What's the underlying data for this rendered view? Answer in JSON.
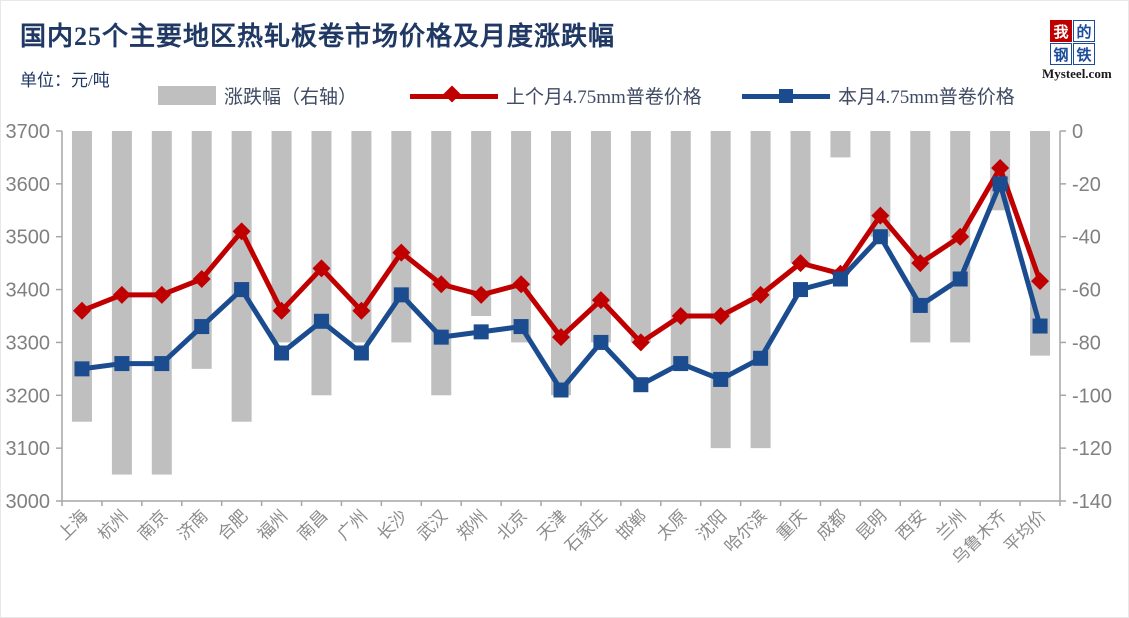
{
  "header": {
    "title": "国内25个主要地区热轧板卷市场价格及月度涨跌幅",
    "subtitle": "单位：元/吨",
    "logo": {
      "chars": [
        "我",
        "的",
        "钢",
        "铁"
      ],
      "domain": "Mysteel.com"
    }
  },
  "legend": {
    "bar_label": "涨跌幅（右轴）",
    "last_month_label": "上个月4.75mm普卷价格",
    "this_month_label": "本月4.75mm普卷价格"
  },
  "colors": {
    "bar": "#bfbfbf",
    "last_month_line": "#c00000",
    "this_month_line": "#1a4c8f",
    "title": "#1f3864",
    "axis_line": "#a6a6a6",
    "axis_text": "#808080",
    "xlabel_text": "#8c8c8c"
  },
  "chart_data": {
    "type": "bar",
    "subtype": "combo-bar-and-lines",
    "title": "国内25个主要地区热轧板卷市场价格及月度涨跌幅",
    "unit": "元/吨",
    "categories": [
      "上海",
      "杭州",
      "南京",
      "济南",
      "合肥",
      "福州",
      "南昌",
      "广州",
      "长沙",
      "武汉",
      "郑州",
      "北京",
      "天津",
      "石家庄",
      "邯郸",
      "太原",
      "沈阳",
      "哈尔滨",
      "重庆",
      "成都",
      "昆明",
      "西安",
      "兰州",
      "乌鲁木齐",
      "平均价"
    ],
    "series": [
      {
        "name": "涨跌幅（右轴）",
        "type": "bar",
        "axis": "right",
        "color": "#bfbfbf",
        "values": [
          -110,
          -130,
          -130,
          -90,
          -110,
          -80,
          -100,
          -80,
          -80,
          -100,
          -70,
          -80,
          -100,
          -80,
          -80,
          -90,
          -120,
          -120,
          -50,
          -10,
          -40,
          -80,
          -80,
          -30,
          -85
        ]
      },
      {
        "name": "上个月4.75mm普卷价格",
        "type": "line",
        "marker": "diamond",
        "axis": "left",
        "color": "#c00000",
        "values": [
          3360,
          3390,
          3390,
          3420,
          3510,
          3360,
          3440,
          3360,
          3470,
          3410,
          3390,
          3410,
          3310,
          3380,
          3300,
          3350,
          3350,
          3390,
          3450,
          3430,
          3540,
          3450,
          3500,
          3630,
          3416
        ]
      },
      {
        "name": "本月4.75mm普卷价格",
        "type": "line",
        "marker": "square",
        "axis": "left",
        "color": "#1a4c8f",
        "values": [
          3250,
          3260,
          3260,
          3330,
          3400,
          3280,
          3340,
          3280,
          3390,
          3310,
          3320,
          3330,
          3210,
          3300,
          3220,
          3260,
          3230,
          3270,
          3400,
          3420,
          3500,
          3370,
          3420,
          3600,
          3331
        ]
      }
    ],
    "left_axis": {
      "min": 3000,
      "max": 3700,
      "step": 100,
      "ticks": [
        3700,
        3600,
        3500,
        3400,
        3300,
        3200,
        3100,
        3000
      ]
    },
    "right_axis": {
      "min": -140,
      "max": 0,
      "step": 20,
      "ticks": [
        0,
        -20,
        -40,
        -60,
        -80,
        -100,
        -120,
        -140
      ]
    },
    "grid": false,
    "legend_position": "top"
  }
}
